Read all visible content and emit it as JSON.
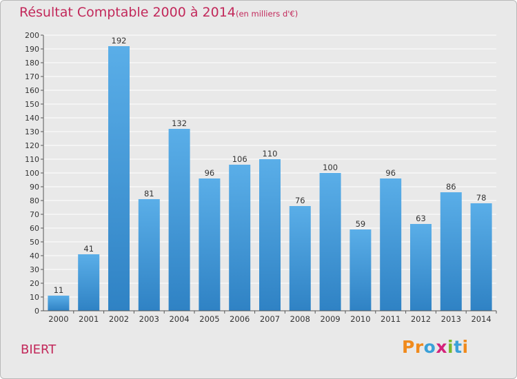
{
  "chart_data": {
    "type": "bar",
    "title": "Résultat Comptable 2000 à 2014",
    "subtitle": "(en milliers d'€)",
    "categories": [
      "2000",
      "2001",
      "2002",
      "2003",
      "2004",
      "2005",
      "2006",
      "2007",
      "2008",
      "2009",
      "2010",
      "2011",
      "2012",
      "2013",
      "2014"
    ],
    "values": [
      11,
      41,
      192,
      81,
      132,
      96,
      106,
      110,
      76,
      100,
      59,
      96,
      63,
      86,
      78
    ],
    "ylim": [
      0,
      200
    ],
    "ytick_step": 10,
    "grid": true,
    "legend": "none",
    "bar_color_light": "#5aaee8",
    "bar_color_dark": "#2f82c4"
  },
  "footer": {
    "place_name": "BIERT"
  },
  "logo": {
    "letters": [
      "P",
      "r",
      "o",
      "x",
      "i",
      "t",
      "i"
    ],
    "colors": [
      "#f08a1c",
      "#f08a1c",
      "#3aa0d8",
      "#d4237a",
      "#7ab82e",
      "#3aa0d8",
      "#f08a1c"
    ]
  },
  "colors": {
    "title": "#c2285a",
    "background": "#e9e9e9",
    "grid": "#ffffff",
    "axis": "#555555"
  }
}
